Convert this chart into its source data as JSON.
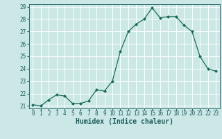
{
  "x": [
    0,
    1,
    2,
    3,
    4,
    5,
    6,
    7,
    8,
    9,
    10,
    11,
    12,
    13,
    14,
    15,
    16,
    17,
    18,
    19,
    20,
    21,
    22,
    23
  ],
  "y": [
    21.1,
    21.0,
    21.5,
    21.9,
    21.8,
    21.2,
    21.2,
    21.4,
    22.3,
    22.2,
    23.0,
    25.4,
    27.0,
    27.6,
    28.0,
    28.9,
    28.1,
    28.2,
    28.2,
    27.5,
    27.0,
    25.0,
    24.0,
    23.8
  ],
  "xlabel": "Humidex (Indice chaleur)",
  "ylabel": "",
  "ylim": [
    20.8,
    29.2
  ],
  "xlim": [
    -0.5,
    23.5
  ],
  "yticks": [
    21,
    22,
    23,
    24,
    25,
    26,
    27,
    28,
    29
  ],
  "xticks": [
    0,
    1,
    2,
    3,
    4,
    5,
    6,
    7,
    8,
    9,
    10,
    11,
    12,
    13,
    14,
    15,
    16,
    17,
    18,
    19,
    20,
    21,
    22,
    23
  ],
  "line_color": "#1a6b5a",
  "marker": "D",
  "marker_size": 2.0,
  "bg_color": "#cce8e6",
  "grid_color": "#ffffff",
  "axis_color": "#1a5c5c",
  "tick_fontsize": 5.5,
  "label_fontsize": 7,
  "line_width": 0.9
}
